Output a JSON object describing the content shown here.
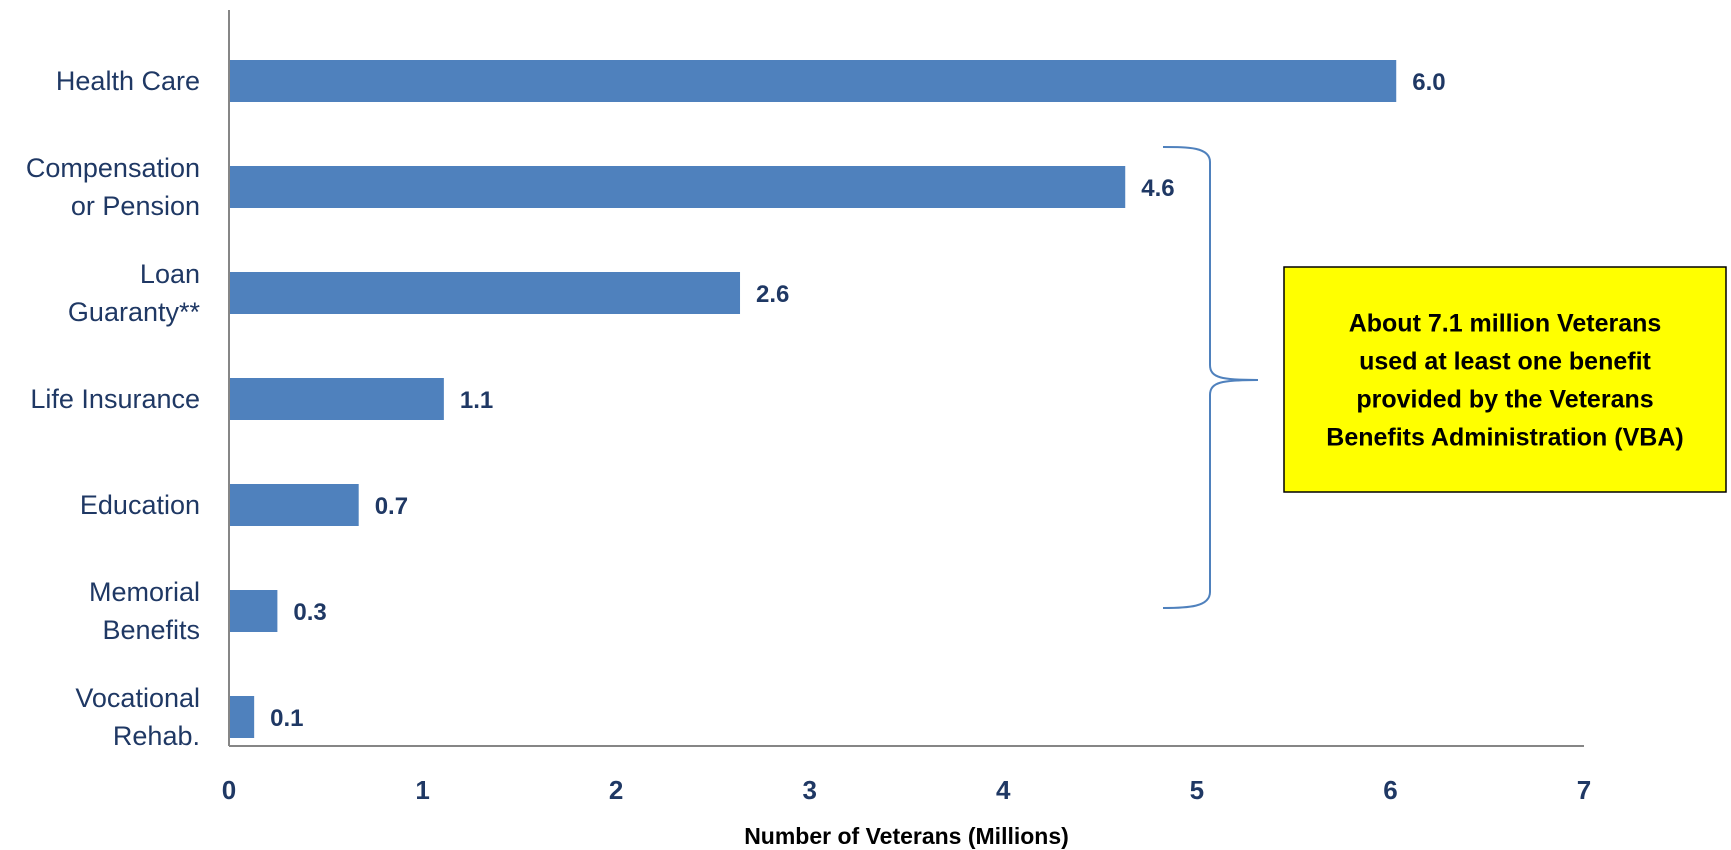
{
  "chart_data": {
    "type": "bar",
    "orientation": "horizontal",
    "categories": [
      [
        "Health Care"
      ],
      [
        "Compensation",
        "or Pension"
      ],
      [
        "Loan",
        "Guaranty**"
      ],
      [
        "Life Insurance"
      ],
      [
        "Education"
      ],
      [
        "Memorial",
        "Benefits"
      ],
      [
        "Vocational",
        "Rehab."
      ]
    ],
    "values": [
      6.03,
      4.63,
      2.64,
      1.11,
      0.67,
      0.25,
      0.13
    ],
    "value_labels": [
      "6.0",
      "4.6",
      "2.6",
      "1.1",
      "0.7",
      "0.3",
      "0.1"
    ],
    "xlabel": "Number of Veterans (Millions)",
    "ylabel": "",
    "xlim": [
      0,
      7
    ],
    "xticks": [
      "0",
      "1",
      "2",
      "3",
      "4",
      "5",
      "6",
      "7"
    ],
    "grid": false,
    "legend": "none",
    "colors": {
      "bar": "#4f81bd",
      "label_text": "#1f3864",
      "axis": "#868686",
      "brace": "#4f81bd",
      "callout_fill": "#ffff00",
      "callout_border": "#000000"
    },
    "annotation": {
      "lines": [
        "About 7.1 million Veterans",
        "used at least one benefit",
        "provided by the Veterans",
        "Benefits Administration (VBA)"
      ]
    }
  }
}
